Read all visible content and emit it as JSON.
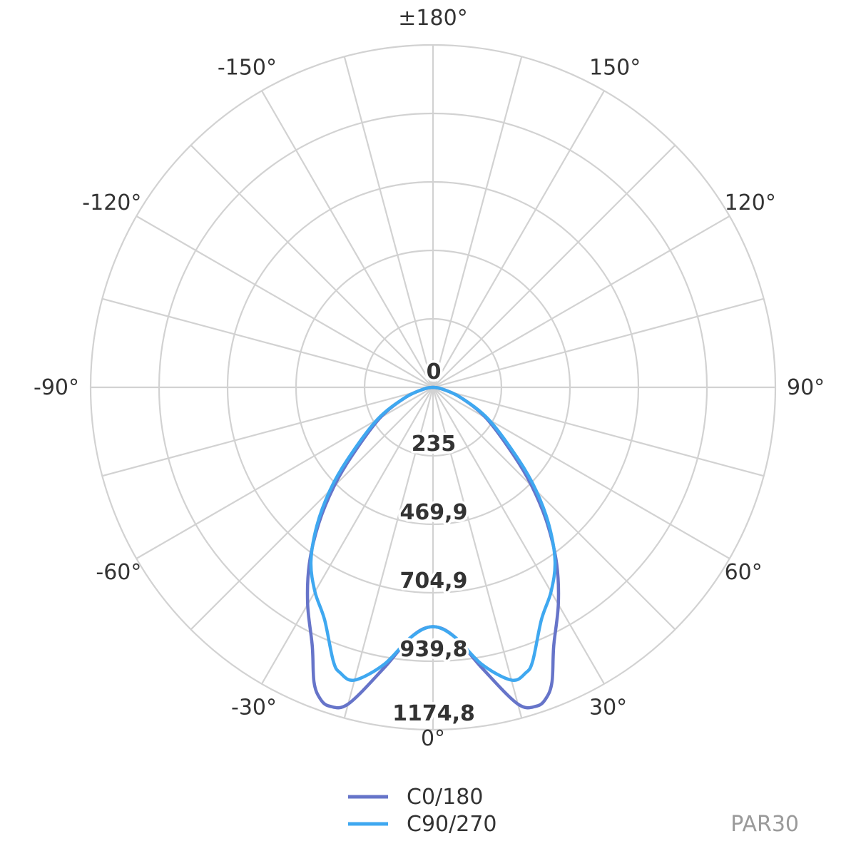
{
  "chart_data": {
    "type": "polar",
    "title": "",
    "r_max": 1174.8,
    "ring_labels": [
      "0",
      "235",
      "469,9",
      "704,9",
      "939,8",
      "1174,8"
    ],
    "ring_values": [
      0,
      235,
      469.9,
      704.9,
      939.8,
      1174.8
    ],
    "angle_labels": [
      {
        "deg": 0,
        "text": "0°"
      },
      {
        "deg": 30,
        "text": "30°"
      },
      {
        "deg": 60,
        "text": "60°"
      },
      {
        "deg": 90,
        "text": "90°"
      },
      {
        "deg": 120,
        "text": "120°"
      },
      {
        "deg": 150,
        "text": "150°"
      },
      {
        "deg": 180,
        "text": "±180°"
      },
      {
        "deg": -150,
        "text": "-150°"
      },
      {
        "deg": -120,
        "text": "-120°"
      },
      {
        "deg": -90,
        "text": "-90°"
      },
      {
        "deg": -60,
        "text": "-60°"
      },
      {
        "deg": -30,
        "text": "-30°"
      }
    ],
    "grid_spoke_step_deg": 15,
    "grid": true,
    "legend_position": "bottom-center",
    "series": [
      {
        "name": "C0/180",
        "color": "#6674c9",
        "angles": [
          0,
          5,
          10,
          15,
          18,
          20,
          22,
          25,
          30,
          35,
          40,
          45,
          50,
          60,
          70,
          80,
          90
        ],
        "values": [
          821,
          860,
          980,
          1125,
          1150,
          1135,
          1090,
          980,
          860,
          740,
          610,
          480,
          360,
          210,
          100,
          30,
          0
        ]
      },
      {
        "name": "C90/270",
        "color": "#3fa8f0",
        "angles": [
          0,
          5,
          10,
          15,
          18,
          20,
          25,
          30,
          35,
          40,
          45,
          50,
          60,
          70,
          80,
          90
        ],
        "values": [
          821,
          860,
          965,
          1040,
          1030,
          1000,
          880,
          810,
          730,
          620,
          500,
          380,
          220,
          100,
          30,
          0
        ]
      }
    ]
  },
  "footer": {
    "product_code": "PAR30"
  }
}
